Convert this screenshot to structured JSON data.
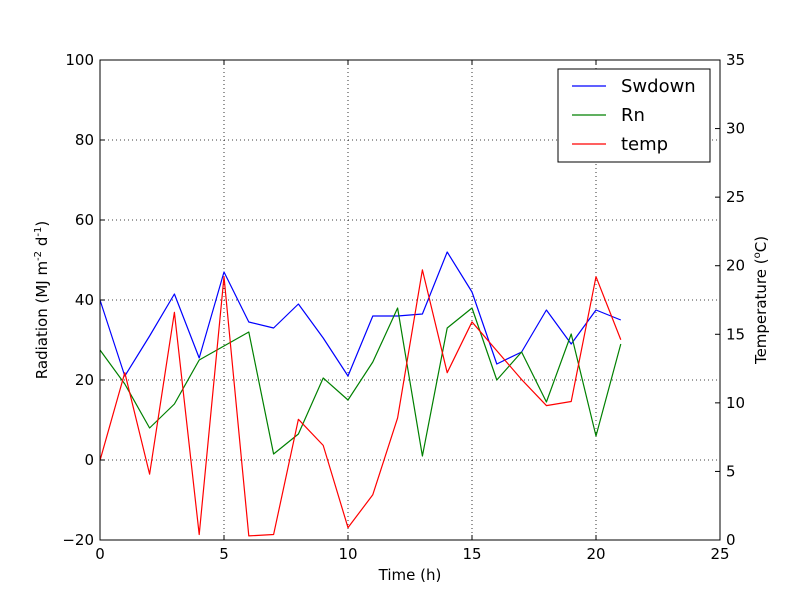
{
  "chart_data": {
    "type": "line",
    "title": "",
    "xlabel": "Time (h)",
    "ylabel_left": {
      "main": "Radiation (MJ m",
      "sup1": "-2",
      "mid": " d",
      "sup2": "-1",
      "end": ")"
    },
    "ylabel_right": {
      "main": "Temperature (",
      "sup": "o",
      "end": "C)"
    },
    "xlim": [
      0,
      25
    ],
    "ylim_left": [
      -20,
      100
    ],
    "ylim_right": [
      0,
      35
    ],
    "xticks": [
      0,
      5,
      10,
      15,
      20,
      25
    ],
    "yticks_left": [
      -20,
      0,
      20,
      40,
      60,
      80,
      100
    ],
    "yticks_right": [
      0,
      5,
      10,
      15,
      20,
      25,
      30,
      35
    ],
    "grid": true,
    "legend_position": "top-right",
    "x": [
      0,
      1,
      2,
      3,
      4,
      5,
      6,
      7,
      8,
      9,
      10,
      11,
      12,
      13,
      14,
      15,
      16,
      17,
      18,
      19,
      20,
      21
    ],
    "series": [
      {
        "name": "Swdown",
        "axis": "left",
        "color": "#0000ff",
        "values": [
          40,
          21,
          31,
          41.5,
          25.5,
          47,
          34.5,
          33,
          39,
          30.5,
          21,
          36,
          36,
          36.5,
          52,
          42,
          24,
          27,
          37.5,
          29,
          37.5,
          35
        ]
      },
      {
        "name": "Rn",
        "axis": "left",
        "color": "#008000",
        "values": [
          27.5,
          19,
          8,
          14,
          25,
          28.5,
          32,
          1.5,
          6.5,
          20.5,
          15,
          24.5,
          38,
          1,
          33,
          38,
          20,
          27,
          14.5,
          31.5,
          6,
          29
        ]
      },
      {
        "name": "temp",
        "axis": "right",
        "color": "#ff0000",
        "values": [
          5.8,
          12.2,
          4.8,
          16.6,
          0.4,
          19.2,
          0.3,
          0.4,
          8.8,
          6.9,
          0.9,
          3.3,
          8.9,
          19.7,
          12.2,
          15.9,
          13.8,
          11.7,
          9.8,
          10.1,
          19.2,
          14.6
        ]
      }
    ]
  }
}
